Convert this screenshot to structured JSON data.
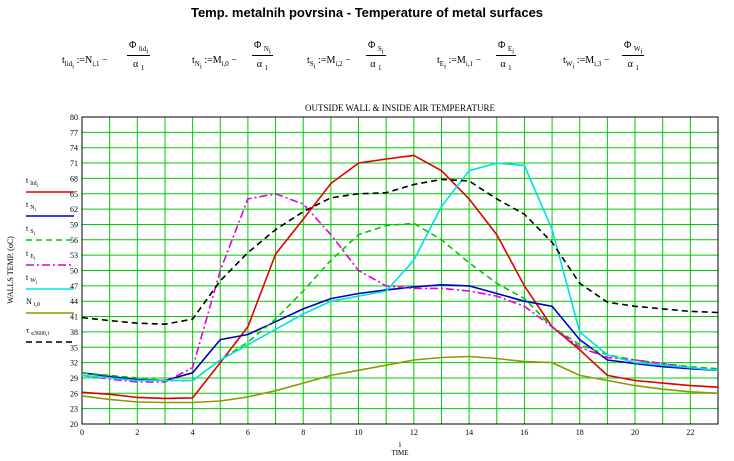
{
  "page_title": "Temp. metalnih povrsina - Temperature of metal surfaces",
  "formulas": [
    {
      "lhs_sym": "t",
      "lhs_sub": "lid",
      "lhs_idx": "i",
      "eq": " :=N",
      "eq_sub": "i,1",
      "minus": " −",
      "num_sym": "Φ",
      "num_sub": "lid",
      "num_idx": "i",
      "den": "α",
      "den_sub": "1"
    },
    {
      "lhs_sym": "t",
      "lhs_sub": "N",
      "lhs_idx": "i",
      "eq": " :=M",
      "eq_sub": "i,0",
      "minus": " −",
      "num_sym": "Φ",
      "num_sub": "N",
      "num_idx": "i",
      "den": "α",
      "den_sub": "1"
    },
    {
      "lhs_sym": "t",
      "lhs_sub": "S",
      "lhs_idx": "i",
      "eq": " :=M",
      "eq_sub": "i,2",
      "minus": " −",
      "num_sym": "Φ",
      "num_sub": "S",
      "num_idx": "i",
      "den": "α",
      "den_sub": "1"
    },
    {
      "lhs_sym": "t",
      "lhs_sub": "E",
      "lhs_idx": "i",
      "eq": " :=M",
      "eq_sub": "i,1",
      "minus": " −",
      "num_sym": "Φ",
      "num_sub": "E",
      "num_idx": "i",
      "den": "α",
      "den_sub": "1"
    },
    {
      "lhs_sym": "t",
      "lhs_sub": "W",
      "lhs_idx": "i",
      "eq": " :=M",
      "eq_sub": "i,3",
      "minus": " −",
      "num_sym": "Φ",
      "num_sub": "W",
      "num_idx": "i",
      "den": "α",
      "den_sub": "1"
    }
  ],
  "chart_data": {
    "type": "line",
    "title": "OUTSIDE WALL & INSIDE AIR TEMPERATURE",
    "xlabel_top": "i",
    "xlabel": "TIME",
    "ylabel": "WALLS TEMP. (oC)",
    "xlim": [
      0,
      23
    ],
    "ylim": [
      20,
      80
    ],
    "xticks": [
      0,
      2,
      4,
      6,
      8,
      10,
      12,
      14,
      16,
      18,
      20,
      22
    ],
    "yticks": [
      20,
      23,
      26,
      29,
      32,
      35,
      38,
      41,
      44,
      47,
      50,
      53,
      56,
      59,
      62,
      65,
      68,
      71,
      74,
      77,
      80
    ],
    "grid": true,
    "legend_position": "left",
    "x": [
      0,
      1,
      2,
      3,
      4,
      5,
      6,
      7,
      8,
      9,
      10,
      11,
      12,
      13,
      14,
      15,
      16,
      17,
      18,
      19,
      20,
      21,
      22,
      23
    ],
    "series": [
      {
        "label_sym": "t",
        "label_sub": "lid",
        "label_idx": "i",
        "color": "#e00000",
        "dash": "",
        "values": [
          26.2,
          25.8,
          25.2,
          25.0,
          25.1,
          32.0,
          39.0,
          53.2,
          60.0,
          67.0,
          71.0,
          71.8,
          72.5,
          69.5,
          64.0,
          57.0,
          47.0,
          39.0,
          34.5,
          29.5,
          28.5,
          28.0,
          27.5,
          27.2
        ]
      },
      {
        "label_sym": "t",
        "label_sub": "N",
        "label_idx": "i",
        "color": "#0000c0",
        "dash": "",
        "values": [
          30.0,
          29.3,
          28.7,
          28.5,
          30.0,
          36.5,
          37.5,
          40.0,
          42.5,
          44.5,
          45.5,
          46.2,
          46.8,
          47.2,
          47.0,
          45.5,
          44.0,
          43.0,
          36.5,
          32.5,
          31.8,
          31.2,
          30.8,
          30.5
        ]
      },
      {
        "label_sym": "t",
        "label_sub": "S",
        "label_idx": "i",
        "color": "#00c800",
        "dash": "6,4",
        "values": [
          30.0,
          29.5,
          29.0,
          28.5,
          28.5,
          32.5,
          36.0,
          40.5,
          46.0,
          52.0,
          57.0,
          58.8,
          59.2,
          56.0,
          51.5,
          47.5,
          44.5,
          39.0,
          35.5,
          33.5,
          32.5,
          31.8,
          31.2,
          30.8
        ]
      },
      {
        "label_sym": "t",
        "label_sub": "E",
        "label_idx": "i",
        "color": "#e000e0",
        "dash": "8,3,2,3",
        "values": [
          29.5,
          28.8,
          28.2,
          28.2,
          31.0,
          50.0,
          64.0,
          65.0,
          63.0,
          57.0,
          50.0,
          47.0,
          46.5,
          46.5,
          46.0,
          45.0,
          43.0,
          39.0,
          35.0,
          33.0,
          32.5,
          31.8,
          31.0,
          30.5
        ]
      },
      {
        "label_sym": "t",
        "label_sub": "W",
        "label_idx": "i",
        "color": "#00e0e0",
        "dash": "",
        "values": [
          29.5,
          29.0,
          28.5,
          28.5,
          28.5,
          32.5,
          35.5,
          38.5,
          41.5,
          44.0,
          45.0,
          46.0,
          52.0,
          62.5,
          69.5,
          71.0,
          70.5,
          58.0,
          38.0,
          33.5,
          32.0,
          31.5,
          31.0,
          30.5
        ]
      },
      {
        "label_sym": "N",
        "label_sub": "i,0",
        "label_idx": "",
        "color": "#8a9a00",
        "dash": "",
        "values": [
          25.5,
          24.8,
          24.3,
          24.2,
          24.2,
          24.5,
          25.3,
          26.5,
          28.0,
          29.5,
          30.5,
          31.5,
          32.5,
          33.0,
          33.2,
          32.8,
          32.2,
          32.0,
          29.5,
          28.5,
          27.5,
          26.8,
          26.3,
          26.0
        ]
      },
      {
        "label_sym": "τ",
        "label_sub": "e3600,i",
        "label_idx": "",
        "color": "#000000",
        "dash": "6,4",
        "values": [
          40.8,
          40.2,
          39.7,
          39.5,
          40.5,
          48.0,
          53.5,
          58.0,
          61.5,
          64.2,
          65.0,
          65.2,
          66.8,
          67.8,
          67.5,
          64.0,
          61.0,
          55.5,
          47.5,
          43.8,
          43.0,
          42.5,
          42.0,
          41.8
        ]
      }
    ]
  }
}
